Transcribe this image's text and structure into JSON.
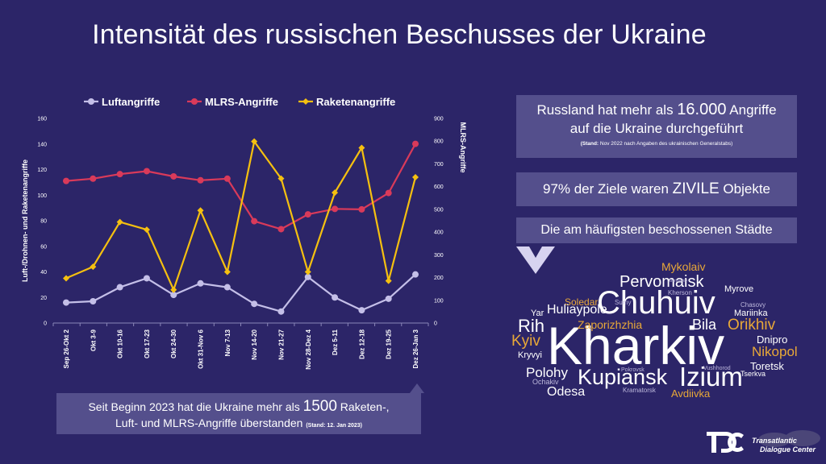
{
  "page": {
    "title": "Intensität des russischen Beschusses der Ukraine"
  },
  "chart_data": {
    "type": "line",
    "categories": [
      "Sep 26-Okt 2",
      "Okt 3-9",
      "Okt 10-16",
      "Okt 17-23",
      "Okt 24-30",
      "Okt 31-Nov 6",
      "Nov 7-13",
      "Nov 14-20",
      "Nov 21-27",
      "Nov 28-Dez 4",
      "Dez 5-11",
      "Dez 12-18",
      "Dez 19-25",
      "Dez 26-Jan 3"
    ],
    "series": [
      {
        "name": "Luftangriffe",
        "axis": "left",
        "color": "#c4bfe8",
        "values": [
          16,
          17,
          28,
          35,
          22,
          31,
          28,
          15,
          9,
          36,
          20,
          10,
          19,
          38
        ]
      },
      {
        "name": "MLRS-Angriffe",
        "axis": "right",
        "color": "#d93a5a",
        "values": [
          625,
          635,
          655,
          668,
          645,
          628,
          635,
          448,
          413,
          478,
          502,
          500,
          572,
          788
        ]
      },
      {
        "name": "Raketenangriffe",
        "axis": "left",
        "color": "#f5c010",
        "values": [
          35,
          44,
          79,
          73,
          26,
          88,
          40,
          142,
          113,
          40,
          102,
          137,
          33,
          114
        ]
      }
    ],
    "ylabel": "Luft-/Drohnen- und Raketenangriffe",
    "y2label": "MLRS-Angriffe",
    "ylim": [
      0,
      160
    ],
    "yticks": [
      "0",
      "20",
      "40",
      "60",
      "80",
      "100",
      "120",
      "140",
      "160"
    ],
    "y2lim": [
      0,
      900
    ],
    "y2ticks": [
      "0",
      "100",
      "200",
      "300",
      "400",
      "500",
      "600",
      "700",
      "800",
      "900"
    ],
    "legend": "top",
    "grid": false
  },
  "stat1": {
    "text_a": "Russland hat mehr als ",
    "number": "16.000",
    "text_b": " Angriffe",
    "line2": "auf die Ukraine durchgeführt",
    "source_bold": "(Stand:",
    "source_rest": " Nov 2022 nach Angaben des ukrainischen Generalstabs)"
  },
  "stat2": {
    "text_a": "97% der Ziele waren ",
    "emph": "ZIVILE",
    "text_b": " Objekte"
  },
  "stat3": {
    "heading": "Die am häufigsten beschossenen Städte"
  },
  "bottom_box": {
    "text_a": "Seit Beginn 2023 hat die Ukraine mehr als ",
    "number": "1500",
    "text_b": " Raketen-,",
    "line2": "Luft- und MLRS-Angriffe überstanden ",
    "source": "(Stand: 12. Jan 2023)"
  },
  "word_cloud": [
    {
      "text": "Kharkiv",
      "color": "#ffffff"
    },
    {
      "text": "Chuhuiv",
      "color": "#ffffff"
    },
    {
      "text": "Izium",
      "color": "#ffffff"
    },
    {
      "text": "Kupiansk",
      "color": "#ffffff"
    },
    {
      "text": "Pervomaisk",
      "color": "#ffffff"
    },
    {
      "text": "Mykolaiv",
      "color": "#e8a838"
    },
    {
      "text": "Orikhiv",
      "color": "#e8a838"
    },
    {
      "text": "Nikopol",
      "color": "#e8a838"
    },
    {
      "text": "Zaporizhzhia",
      "color": "#e8a838"
    },
    {
      "text": "Kyiv",
      "color": "#e8a838"
    },
    {
      "text": "Soledar",
      "color": "#e8a838"
    },
    {
      "text": "Avdiivka",
      "color": "#e8a838"
    },
    {
      "text": "Rih",
      "color": "#ffffff"
    },
    {
      "text": "Huliaypole",
      "color": "#ffffff"
    },
    {
      "text": "Bila",
      "color": "#ffffff"
    },
    {
      "text": "Polohy",
      "color": "#ffffff"
    },
    {
      "text": "Odesa",
      "color": "#ffffff"
    },
    {
      "text": "Dnipro",
      "color": "#ffffff"
    },
    {
      "text": "Toretsk",
      "color": "#ffffff"
    },
    {
      "text": "Mariinka",
      "color": "#ffffff"
    },
    {
      "text": "Myrove",
      "color": "#ffffff"
    },
    {
      "text": "Kherson",
      "color": "#ffffff"
    },
    {
      "text": "Sumy",
      "color": "#ffffff"
    },
    {
      "text": "Chasovy",
      "color": "#ffffff"
    },
    {
      "text": "Yar",
      "color": "#ffffff"
    },
    {
      "text": "Kryvyi",
      "color": "#ffffff"
    },
    {
      "text": "Ochakiv",
      "color": "#ffffff"
    },
    {
      "text": "Pokrovsk",
      "color": "#ffffff"
    },
    {
      "text": "Vushhorod",
      "color": "#ffffff"
    },
    {
      "text": "Tserkva",
      "color": "#ffffff"
    },
    {
      "text": "Kramatorsk",
      "color": "#ffffff"
    },
    {
      "text": "Berdychiv",
      "color": "#ffffff"
    }
  ],
  "logo": {
    "line1": "Transatlantic",
    "line2": "Dialogue Center"
  }
}
